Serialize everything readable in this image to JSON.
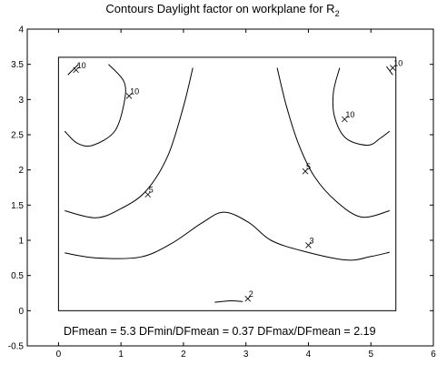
{
  "chart_data": {
    "type": "contour",
    "title": "Contours Daylight factor on workplane  for R",
    "title_subscript": "2",
    "xlim": [
      -0.5,
      6
    ],
    "ylim": [
      -0.5,
      4
    ],
    "x_ticks": [
      0,
      1,
      2,
      3,
      4,
      5,
      6
    ],
    "y_ticks": [
      -0.5,
      0,
      0.5,
      1,
      1.5,
      2,
      2.5,
      3,
      3.5,
      4
    ],
    "x_tick_labels": [
      "0",
      "1",
      "2",
      "3",
      "4",
      "5",
      "6"
    ],
    "y_tick_labels": [
      "-0.5",
      "0",
      "0.5",
      "1",
      "1.5",
      "2",
      "2.5",
      "3",
      "3.5",
      "4"
    ],
    "room_outline": {
      "x": [
        0,
        5.4
      ],
      "y": [
        0,
        3.6
      ]
    },
    "contours": [
      {
        "level": 2,
        "points": [
          [
            2.5,
            0.12
          ],
          [
            2.75,
            0.14
          ],
          [
            2.95,
            0.13
          ]
        ]
      },
      {
        "level": 3,
        "points": [
          [
            0.1,
            0.82
          ],
          [
            0.6,
            0.75
          ],
          [
            1.3,
            0.76
          ],
          [
            1.8,
            0.95
          ],
          [
            2.3,
            1.25
          ],
          [
            2.65,
            1.4
          ],
          [
            3.05,
            1.25
          ],
          [
            3.4,
            1.0
          ],
          [
            3.9,
            0.85
          ],
          [
            4.6,
            0.72
          ],
          [
            5.0,
            0.77
          ],
          [
            5.3,
            0.83
          ]
        ]
      },
      {
        "level": 5,
        "points": [
          [
            0.1,
            1.42
          ],
          [
            0.6,
            1.32
          ],
          [
            1.0,
            1.45
          ],
          [
            1.4,
            1.7
          ],
          [
            1.75,
            2.2
          ],
          [
            2.0,
            2.9
          ],
          [
            2.15,
            3.45
          ]
        ]
      },
      {
        "level": 5,
        "points": [
          [
            3.5,
            3.45
          ],
          [
            3.65,
            2.9
          ],
          [
            3.85,
            2.35
          ],
          [
            4.1,
            1.9
          ],
          [
            4.45,
            1.55
          ],
          [
            4.85,
            1.33
          ],
          [
            5.3,
            1.42
          ]
        ]
      },
      {
        "level": 10,
        "points": [
          [
            0.1,
            2.55
          ],
          [
            0.3,
            2.38
          ],
          [
            0.55,
            2.35
          ],
          [
            0.9,
            2.55
          ],
          [
            1.05,
            2.95
          ],
          [
            1.05,
            3.25
          ],
          [
            0.8,
            3.5
          ]
        ]
      },
      {
        "level": 10,
        "points": [
          [
            4.5,
            3.45
          ],
          [
            4.4,
            3.1
          ],
          [
            4.42,
            2.75
          ],
          [
            4.6,
            2.45
          ],
          [
            4.95,
            2.35
          ],
          [
            5.15,
            2.45
          ],
          [
            5.3,
            2.55
          ]
        ]
      },
      {
        "level": 10,
        "points": [
          [
            0.15,
            3.35
          ],
          [
            0.32,
            3.5
          ]
        ]
      },
      {
        "level": 10,
        "points": [
          [
            5.35,
            3.35
          ],
          [
            5.25,
            3.47
          ]
        ]
      }
    ],
    "contour_labels": [
      {
        "text": "10",
        "x": 0.28,
        "y": 3.42
      },
      {
        "text": "10",
        "x": 1.13,
        "y": 3.05
      },
      {
        "text": "10",
        "x": 5.35,
        "y": 3.45
      },
      {
        "text": "10",
        "x": 4.58,
        "y": 2.72
      },
      {
        "text": "5",
        "x": 1.43,
        "y": 1.65
      },
      {
        "text": "5",
        "x": 3.95,
        "y": 1.98
      },
      {
        "text": "3",
        "x": 4.0,
        "y": 0.93
      },
      {
        "text": "2",
        "x": 3.03,
        "y": 0.17
      }
    ],
    "stats": {
      "text": "DFmean =  5.3   DFmin/DFmean = 0.37   DFmax/DFmean =  2.19"
    }
  }
}
